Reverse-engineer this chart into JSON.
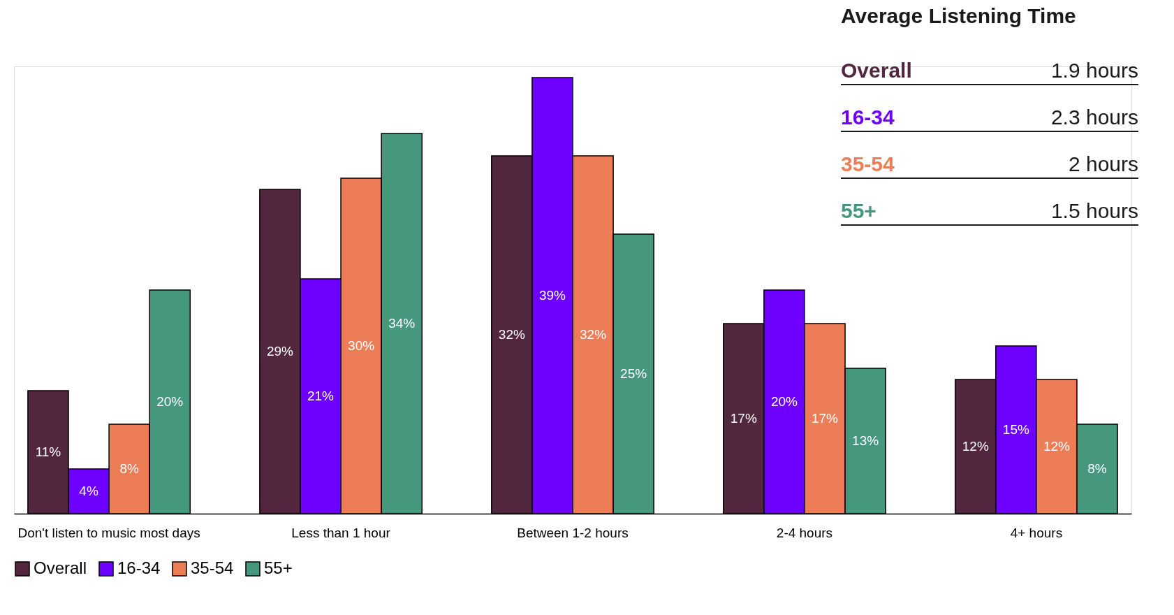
{
  "chart_data": {
    "type": "bar",
    "categories": [
      "Don't listen to music most days",
      "Less than 1 hour",
      "Between 1-2 hours",
      "2-4 hours",
      "4+ hours"
    ],
    "series": [
      {
        "name": "Overall",
        "color": "#52263f",
        "values": [
          11,
          29,
          32,
          17,
          12
        ],
        "value_labels": [
          "11%",
          "29%",
          "32%",
          "17%",
          "12%"
        ]
      },
      {
        "name": "16-34",
        "color": "#6e00ff",
        "values": [
          4,
          21,
          39,
          20,
          15
        ],
        "value_labels": [
          "4%",
          "21%",
          "39%",
          "20%",
          "15%"
        ]
      },
      {
        "name": "35-54",
        "color": "#ec7d57",
        "values": [
          8,
          30,
          32,
          17,
          12
        ],
        "value_labels": [
          "8%",
          "30%",
          "32%",
          "17%",
          "12%"
        ]
      },
      {
        "name": "55+",
        "color": "#45977d",
        "values": [
          20,
          34,
          25,
          13,
          8
        ],
        "value_labels": [
          "20%",
          "34%",
          "25%",
          "13%",
          "8%"
        ]
      }
    ],
    "legend": "bottom",
    "annotations": [
      "Average Listening Time",
      "Overall",
      "1.9 hours",
      "16-34",
      "2.3 hours",
      "35-54",
      "2 hours",
      "55+",
      "1.5 hours"
    ]
  }
}
